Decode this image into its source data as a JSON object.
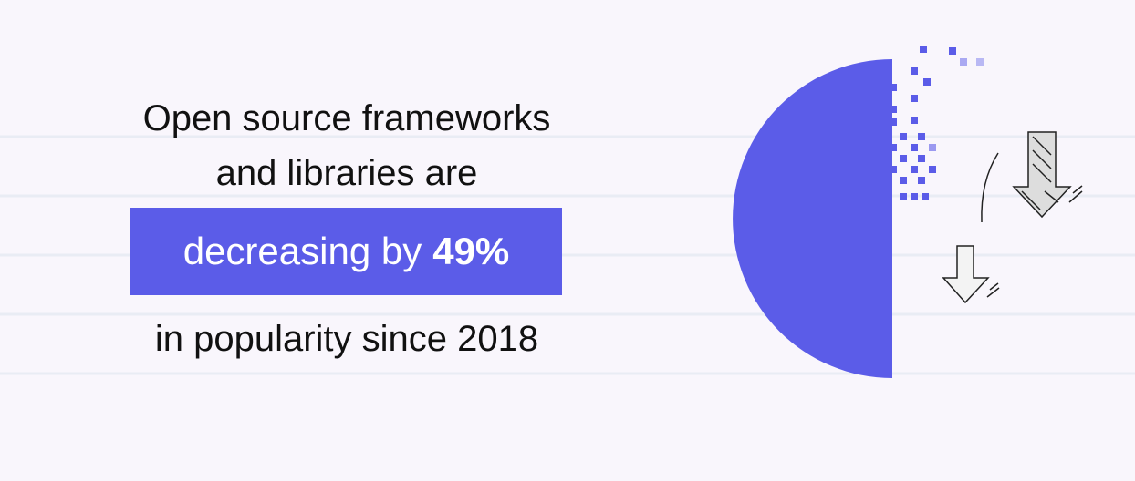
{
  "headline": {
    "line1": "Open source frameworks",
    "line2": "and libraries are",
    "highlight_text": "decreasing by",
    "highlight_figure": "49%",
    "line4": "in popularity since 2018"
  }
}
